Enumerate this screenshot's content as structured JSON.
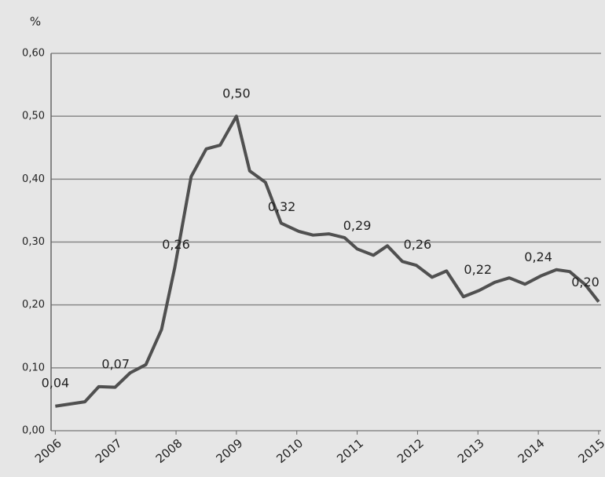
{
  "chart_data": {
    "type": "line",
    "y_label": "%",
    "x": [
      2006.0,
      2006.49,
      2006.72,
      2006.99,
      2007.24,
      2007.5,
      2007.76,
      2007.98,
      2008.25,
      2008.5,
      2008.73,
      2009.0,
      2009.22,
      2009.48,
      2009.74,
      2010.03,
      2010.27,
      2010.53,
      2010.79,
      2011.0,
      2011.27,
      2011.5,
      2011.75,
      2011.98,
      2012.24,
      2012.48,
      2012.76,
      2013.02,
      2013.28,
      2013.52,
      2013.78,
      2014.04,
      2014.3,
      2014.52,
      2014.78,
      2015.0
    ],
    "series": [
      {
        "name": null,
        "color": "#505050",
        "values": [
          0.039,
          0.046,
          0.07,
          0.069,
          0.092,
          0.105,
          0.161,
          0.26,
          0.404,
          0.448,
          0.454,
          0.5,
          0.413,
          0.395,
          0.33,
          0.317,
          0.311,
          0.313,
          0.307,
          0.289,
          0.279,
          0.294,
          0.269,
          0.263,
          0.244,
          0.254,
          0.213,
          0.223,
          0.236,
          0.243,
          0.233,
          0.246,
          0.256,
          0.253,
          0.232,
          0.205
        ]
      }
    ],
    "annotations": [
      {
        "label": "0,04",
        "x": 2006.0,
        "value": 0.04
      },
      {
        "label": "0,07",
        "x": 2007.0,
        "value": 0.07
      },
      {
        "label": "0,26",
        "x": 2008.0,
        "value": 0.26
      },
      {
        "label": "0,50",
        "x": 2009.0,
        "value": 0.5
      },
      {
        "label": "0,32",
        "x": 2009.75,
        "value": 0.32
      },
      {
        "label": "0,29",
        "x": 2011.0,
        "value": 0.29
      },
      {
        "label": "0,26",
        "x": 2012.0,
        "value": 0.26
      },
      {
        "label": "0,22",
        "x": 2013.0,
        "value": 0.22
      },
      {
        "label": "0,24",
        "x": 2014.0,
        "value": 0.24
      },
      {
        "label": "0,20",
        "x": 2015.0,
        "value": 0.2
      }
    ],
    "xlim": [
      2005.93,
      2015.04
    ],
    "xticks": [
      2006,
      2007,
      2008,
      2009,
      2010,
      2011,
      2012,
      2013,
      2014,
      2015
    ],
    "ylim": [
      0,
      0.6
    ],
    "yticks": [
      {
        "value": 0,
        "label": "0,00"
      },
      {
        "value": 0.1,
        "label": "0,10"
      },
      {
        "value": 0.2,
        "label": "0,20"
      },
      {
        "value": 0.3,
        "label": "0,30"
      },
      {
        "value": 0.4,
        "label": "0,40"
      },
      {
        "value": 0.5,
        "label": "0,50"
      },
      {
        "value": 0.6,
        "label": "0,60"
      }
    ],
    "grid": true
  }
}
